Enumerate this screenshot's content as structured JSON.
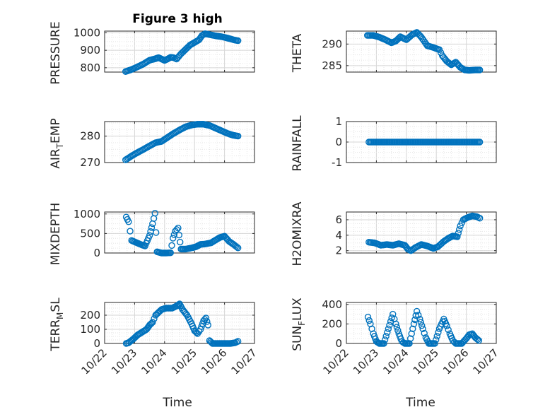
{
  "figure": {
    "title": "Figure 3 high",
    "xlabel": "Time",
    "marker_color": "#0072BD"
  },
  "chart_data": [
    {
      "type": "scatter",
      "title": "Figure 3 high",
      "ylabel": "PRESSURE",
      "ylim": [
        775,
        1010
      ],
      "yticks": [
        800,
        900,
        1000
      ],
      "points": [
        [
          22.7,
          778
        ],
        [
          22.9,
          790
        ],
        [
          23.1,
          805
        ],
        [
          23.3,
          822
        ],
        [
          23.5,
          843
        ],
        [
          23.7,
          852
        ],
        [
          23.8,
          858
        ],
        [
          23.9,
          850
        ],
        [
          24.0,
          842
        ],
        [
          24.1,
          850
        ],
        [
          24.2,
          860
        ],
        [
          24.3,
          858
        ],
        [
          24.4,
          850
        ],
        [
          24.55,
          880
        ],
        [
          24.7,
          905
        ],
        [
          24.85,
          930
        ],
        [
          25.0,
          945
        ],
        [
          25.15,
          960
        ],
        [
          25.25,
          985
        ],
        [
          25.35,
          995
        ],
        [
          25.5,
          990
        ],
        [
          25.7,
          983
        ],
        [
          25.9,
          978
        ],
        [
          26.1,
          970
        ],
        [
          26.3,
          960
        ],
        [
          26.45,
          955
        ]
      ]
    },
    {
      "type": "scatter",
      "ylabel": "THETA",
      "ylim": [
        283.5,
        293
      ],
      "yticks": [
        285,
        290
      ],
      "points": [
        [
          22.7,
          292
        ],
        [
          22.9,
          292
        ],
        [
          23.1,
          291.6
        ],
        [
          23.3,
          291
        ],
        [
          23.5,
          290.3
        ],
        [
          23.65,
          290.7
        ],
        [
          23.8,
          291.7
        ],
        [
          24.0,
          291
        ],
        [
          24.2,
          292.2
        ],
        [
          24.35,
          292.7
        ],
        [
          24.5,
          291.6
        ],
        [
          24.7,
          289.6
        ],
        [
          24.9,
          289.2
        ],
        [
          25.1,
          288.7
        ],
        [
          25.2,
          287.3
        ],
        [
          25.35,
          286
        ],
        [
          25.5,
          285.2
        ],
        [
          25.65,
          285.8
        ],
        [
          25.8,
          284.6
        ],
        [
          25.95,
          284
        ],
        [
          26.1,
          283.9
        ],
        [
          26.3,
          284
        ],
        [
          26.45,
          284
        ]
      ]
    },
    {
      "type": "scatter",
      "ylabel": "AIR_TEMP",
      "ylim": [
        270,
        285.5
      ],
      "yticks": [
        270,
        280
      ],
      "points": [
        [
          22.7,
          271
        ],
        [
          22.9,
          272.5
        ],
        [
          23.1,
          273.8
        ],
        [
          23.3,
          275
        ],
        [
          23.5,
          276.3
        ],
        [
          23.7,
          277.5
        ],
        [
          23.9,
          278
        ],
        [
          24.1,
          279.5
        ],
        [
          24.3,
          281
        ],
        [
          24.5,
          282.3
        ],
        [
          24.7,
          283.5
        ],
        [
          24.9,
          284.2
        ],
        [
          25.1,
          284.5
        ],
        [
          25.3,
          284.5
        ],
        [
          25.5,
          284
        ],
        [
          25.7,
          283
        ],
        [
          25.9,
          282
        ],
        [
          26.1,
          281
        ],
        [
          26.3,
          280.3
        ],
        [
          26.45,
          280
        ]
      ]
    },
    {
      "type": "scatter",
      "ylabel": "RAINFALL",
      "ylim": [
        -1,
        1
      ],
      "yticks": [
        -1,
        0,
        1
      ],
      "points": [
        [
          22.75,
          0
        ],
        [
          23.0,
          0
        ],
        [
          23.25,
          0
        ],
        [
          23.5,
          0
        ],
        [
          23.75,
          0
        ],
        [
          24.0,
          0
        ],
        [
          24.25,
          0
        ],
        [
          24.5,
          0
        ],
        [
          24.75,
          0
        ],
        [
          25.0,
          0
        ],
        [
          25.25,
          0
        ],
        [
          25.5,
          0
        ],
        [
          25.75,
          0
        ],
        [
          26.0,
          0
        ],
        [
          26.25,
          0
        ],
        [
          26.45,
          0
        ]
      ]
    },
    {
      "type": "scatter",
      "ylabel": "MIXDEPTH",
      "ylim": [
        0,
        1050
      ],
      "yticks": [
        0,
        500,
        1000
      ],
      "points": [
        [
          22.72,
          920
        ],
        [
          22.8,
          800
        ],
        [
          22.9,
          320
        ],
        [
          23.05,
          270
        ],
        [
          23.2,
          220
        ],
        [
          23.35,
          180
        ],
        [
          23.5,
          450
        ],
        [
          23.6,
          750
        ],
        [
          23.68,
          1020
        ],
        [
          23.75,
          30
        ],
        [
          23.9,
          0
        ],
        [
          24.05,
          0
        ],
        [
          24.2,
          5
        ],
        [
          24.28,
          380
        ],
        [
          24.36,
          560
        ],
        [
          24.45,
          640
        ],
        [
          24.55,
          100
        ],
        [
          24.7,
          100
        ],
        [
          24.9,
          130
        ],
        [
          25.05,
          160
        ],
        [
          25.2,
          220
        ],
        [
          25.35,
          230
        ],
        [
          25.55,
          260
        ],
        [
          25.7,
          330
        ],
        [
          25.85,
          400
        ],
        [
          26.0,
          430
        ],
        [
          26.15,
          300
        ],
        [
          26.3,
          220
        ],
        [
          26.45,
          130
        ]
      ]
    },
    {
      "type": "scatter",
      "ylabel": "H2OMIXRA",
      "ylim": [
        1.7,
        7
      ],
      "yticks": [
        2,
        4,
        6
      ],
      "points": [
        [
          22.75,
          3.1
        ],
        [
          22.95,
          3.0
        ],
        [
          23.15,
          2.7
        ],
        [
          23.35,
          2.8
        ],
        [
          23.55,
          2.7
        ],
        [
          23.75,
          2.9
        ],
        [
          23.95,
          2.7
        ],
        [
          24.05,
          2.2
        ],
        [
          24.15,
          2.0
        ],
        [
          24.3,
          2.4
        ],
        [
          24.5,
          2.8
        ],
        [
          24.7,
          2.6
        ],
        [
          24.9,
          2.3
        ],
        [
          25.05,
          2.5
        ],
        [
          25.25,
          3.2
        ],
        [
          25.4,
          3.6
        ],
        [
          25.55,
          3.9
        ],
        [
          25.7,
          3.8
        ],
        [
          25.8,
          5.2
        ],
        [
          25.9,
          6.0
        ],
        [
          26.05,
          6.3
        ],
        [
          26.2,
          6.5
        ],
        [
          26.35,
          6.4
        ],
        [
          26.45,
          6.2
        ]
      ]
    },
    {
      "type": "scatter",
      "ylabel": "TERR_MSL",
      "ylim": [
        0,
        290
      ],
      "yticks": [
        0,
        100,
        200
      ],
      "points": [
        [
          22.72,
          0
        ],
        [
          22.8,
          5
        ],
        [
          22.95,
          30
        ],
        [
          23.1,
          60
        ],
        [
          23.25,
          80
        ],
        [
          23.4,
          100
        ],
        [
          23.5,
          130
        ],
        [
          23.6,
          150
        ],
        [
          23.7,
          200
        ],
        [
          23.8,
          220
        ],
        [
          23.9,
          240
        ],
        [
          24.05,
          250
        ],
        [
          24.25,
          250
        ],
        [
          24.4,
          265
        ],
        [
          24.5,
          280
        ],
        [
          24.6,
          240
        ],
        [
          24.75,
          200
        ],
        [
          24.9,
          140
        ],
        [
          25.0,
          90
        ],
        [
          25.1,
          70
        ],
        [
          25.2,
          100
        ],
        [
          25.3,
          160
        ],
        [
          25.38,
          180
        ],
        [
          25.45,
          130
        ],
        [
          25.5,
          20
        ],
        [
          25.6,
          0
        ],
        [
          25.8,
          0
        ],
        [
          26.0,
          0
        ],
        [
          26.2,
          0
        ],
        [
          26.35,
          5
        ],
        [
          26.45,
          15
        ]
      ]
    },
    {
      "type": "scatter",
      "ylabel": "SUN_FLUX",
      "ylim": [
        0,
        420
      ],
      "yticks": [
        0,
        200,
        400
      ],
      "points": [
        [
          22.72,
          270
        ],
        [
          22.8,
          200
        ],
        [
          22.9,
          100
        ],
        [
          23.0,
          20
        ],
        [
          23.1,
          0
        ],
        [
          23.25,
          0
        ],
        [
          23.4,
          150
        ],
        [
          23.55,
          300
        ],
        [
          23.65,
          200
        ],
        [
          23.75,
          100
        ],
        [
          23.85,
          20
        ],
        [
          23.95,
          0
        ],
        [
          24.1,
          0
        ],
        [
          24.25,
          200
        ],
        [
          24.35,
          330
        ],
        [
          24.45,
          250
        ],
        [
          24.55,
          150
        ],
        [
          24.65,
          60
        ],
        [
          24.75,
          0
        ],
        [
          24.95,
          0
        ],
        [
          25.1,
          150
        ],
        [
          25.25,
          250
        ],
        [
          25.35,
          180
        ],
        [
          25.45,
          100
        ],
        [
          25.55,
          30
        ],
        [
          25.65,
          0
        ],
        [
          25.85,
          0
        ],
        [
          26.0,
          50
        ],
        [
          26.1,
          90
        ],
        [
          26.2,
          100
        ],
        [
          26.3,
          60
        ],
        [
          26.42,
          30
        ]
      ]
    }
  ],
  "xaxis": {
    "xlim": [
      22,
      27
    ],
    "tick_labels": [
      "10/22",
      "10/23",
      "10/24",
      "10/25",
      "10/26",
      "10/27"
    ]
  }
}
